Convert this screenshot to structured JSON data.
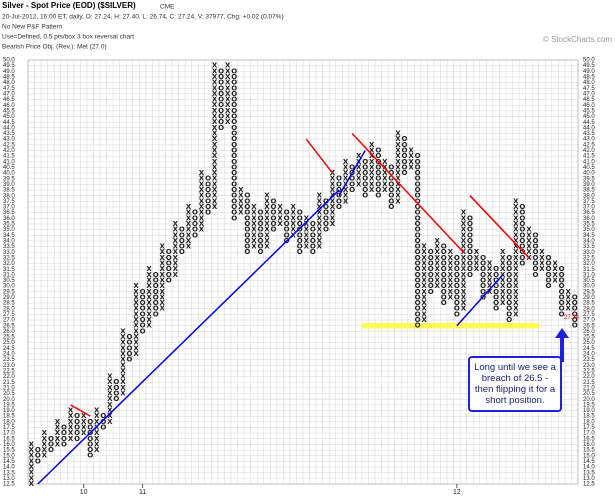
{
  "chart_data": {
    "type": "pnf",
    "title": "Silver - Spot Price (EOD) ($SILVER)",
    "exchange": "CME",
    "subtitle": "20-Jul-2012, 16:00 ET, daily, O: 27.24, H: 27.40, L: 26.74, C: 27.24, V: 37977, Chg: +0.02 (0.07%)",
    "pattern": "No New P&F Pattern",
    "settings": "Use=Defined, 0.5 pts/box 3 box reversal chart",
    "objective": "Bearish Price Obj. (Rev.): Met (27.0)",
    "copyright": "© StockCharts.com",
    "box_size": 0.5,
    "last_price": 27.24,
    "annotation": "Long until we see a breach of 26.5 - then flipping it for a short position.",
    "ylim": [
      12.5,
      50
    ],
    "yticks": [
      12.5,
      {
        "value": 13,
        "label": "13.0"
      },
      13.5,
      {
        "value": 14,
        "label": "14.0"
      },
      14.5,
      {
        "value": 15,
        "label": "15.0"
      },
      15.5,
      {
        "value": 16,
        "label": "16.0"
      },
      16.5,
      {
        "value": 17,
        "label": "17.0"
      },
      17.5,
      {
        "value": 18,
        "label": "18.0"
      },
      18.5,
      {
        "value": 19,
        "label": "19.0"
      },
      19.5,
      {
        "value": 20,
        "label": "20.0"
      },
      20.5,
      {
        "value": 21,
        "label": "21.0"
      },
      21.5,
      {
        "value": 22,
        "label": "22.0"
      },
      22.5,
      {
        "value": 23,
        "label": "23.0"
      },
      23.5,
      {
        "value": 24,
        "label": "24.0"
      },
      24.5,
      {
        "value": 25,
        "label": "25.0"
      },
      25.5,
      {
        "value": 26,
        "label": "26.0"
      },
      26.5,
      {
        "value": 27,
        "label": "27.0"
      },
      27.5,
      {
        "value": 28,
        "label": "28.0"
      },
      28.5,
      {
        "value": 29,
        "label": "29.0"
      },
      29.5,
      {
        "value": 30,
        "label": "30.0"
      },
      30.5,
      {
        "value": 31,
        "label": "31.0"
      },
      31.5,
      {
        "value": 32,
        "label": "32.0"
      },
      32.5,
      {
        "value": 33,
        "label": "33.0"
      },
      33.5,
      {
        "value": 34,
        "label": "34.0"
      },
      34.5,
      {
        "value": 35,
        "label": "35.0"
      },
      35.5,
      {
        "value": 36,
        "label": "36.0"
      },
      36.5,
      {
        "value": 37,
        "label": "37.0"
      },
      37.5,
      {
        "value": 38,
        "label": "38.0"
      },
      38.5,
      {
        "value": 39,
        "label": "39.0"
      },
      39.5,
      {
        "value": 40,
        "label": "40.0"
      },
      40.5,
      {
        "value": 41,
        "label": "41.0"
      },
      41.5,
      {
        "value": 42,
        "label": "42.0"
      },
      42.5,
      {
        "value": 43,
        "label": "43.0"
      },
      43.5,
      {
        "value": 44,
        "label": "44.0"
      },
      44.5,
      {
        "value": 45,
        "label": "45.0"
      },
      45.5,
      {
        "value": 46,
        "label": "46.0"
      },
      46.5,
      {
        "value": 47,
        "label": "47.0"
      },
      47.5,
      {
        "value": 48,
        "label": "48.0"
      },
      48.5,
      {
        "value": 49,
        "label": "49.0"
      },
      49.5,
      {
        "value": 50,
        "label": "50.0"
      }
    ],
    "grid": true,
    "xlabels": [
      {
        "label": "10",
        "column": 8
      },
      {
        "label": "11",
        "column": 17
      },
      {
        "label": "12",
        "column": 65
      }
    ],
    "columns": [
      {
        "type": "X",
        "low": 12.5,
        "high": 16
      },
      {
        "type": "O",
        "low": 14.5,
        "high": 15.5
      },
      {
        "type": "X",
        "low": 15,
        "high": 17
      },
      {
        "type": "O",
        "low": 15.5,
        "high": 16.5
      },
      {
        "type": "X",
        "low": 16,
        "high": 18
      },
      {
        "type": "O",
        "low": 16,
        "high": 17.5
      },
      {
        "type": "X",
        "low": 16.5,
        "high": 19
      },
      {
        "type": "O",
        "low": 16.5,
        "high": 18.5
      },
      {
        "type": "X",
        "low": 17,
        "high": 18.5
      },
      {
        "type": "O",
        "low": 15,
        "high": 18
      },
      {
        "type": "X",
        "low": 15.5,
        "high": 19
      },
      {
        "type": "O",
        "low": 17.5,
        "high": 18.5
      },
      {
        "type": "X",
        "low": 18,
        "high": 22
      },
      {
        "type": "O",
        "low": 20,
        "high": 21.5
      },
      {
        "type": "X",
        "low": 20.5,
        "high": 26
      },
      {
        "type": "O",
        "low": 23.5,
        "high": 25.5
      },
      {
        "type": "X",
        "low": 24,
        "high": 30
      },
      {
        "type": "O",
        "low": 26,
        "high": 29.5
      },
      {
        "type": "X",
        "low": 26.5,
        "high": 31.5
      },
      {
        "type": "O",
        "low": 27.5,
        "high": 31
      },
      {
        "type": "X",
        "low": 28,
        "high": 33.5
      },
      {
        "type": "O",
        "low": 30.5,
        "high": 33
      },
      {
        "type": "X",
        "low": 31,
        "high": 35.5
      },
      {
        "type": "O",
        "low": 33,
        "high": 35
      },
      {
        "type": "X",
        "low": 33.5,
        "high": 37
      },
      {
        "type": "O",
        "low": 34.5,
        "high": 36.5
      },
      {
        "type": "X",
        "low": 35,
        "high": 40
      },
      {
        "type": "O",
        "low": 36.5,
        "high": 39.5
      },
      {
        "type": "X",
        "low": 37,
        "high": 49.5
      },
      {
        "type": "O",
        "low": 44,
        "high": 49
      },
      {
        "type": "X",
        "low": 44.5,
        "high": 49.5
      },
      {
        "type": "O",
        "low": 36,
        "high": 49
      },
      {
        "type": "X",
        "low": 36.5,
        "high": 38.5
      },
      {
        "type": "O",
        "low": 33,
        "high": 38
      },
      {
        "type": "X",
        "low": 33.5,
        "high": 37
      },
      {
        "type": "O",
        "low": 33,
        "high": 36.5
      },
      {
        "type": "X",
        "low": 33.5,
        "high": 38
      },
      {
        "type": "O",
        "low": 35,
        "high": 37.5
      },
      {
        "type": "X",
        "low": 35.5,
        "high": 37
      },
      {
        "type": "O",
        "low": 34,
        "high": 36.5
      },
      {
        "type": "X",
        "low": 34.5,
        "high": 37
      },
      {
        "type": "O",
        "low": 33,
        "high": 36.5
      },
      {
        "type": "X",
        "low": 33.5,
        "high": 36
      },
      {
        "type": "O",
        "low": 33,
        "high": 35.5
      },
      {
        "type": "X",
        "low": 33.5,
        "high": 38
      },
      {
        "type": "O",
        "low": 35,
        "high": 37.5
      },
      {
        "type": "X",
        "low": 35.5,
        "high": 40
      },
      {
        "type": "O",
        "low": 37,
        "high": 39.5
      },
      {
        "type": "X",
        "low": 37.5,
        "high": 41
      },
      {
        "type": "O",
        "low": 38.5,
        "high": 40.5
      },
      {
        "type": "X",
        "low": 39,
        "high": 41.5
      },
      {
        "type": "O",
        "low": 38,
        "high": 41
      },
      {
        "type": "X",
        "low": 38.5,
        "high": 42.5
      },
      {
        "type": "O",
        "low": 38,
        "high": 42
      },
      {
        "type": "X",
        "low": 38.5,
        "high": 41
      },
      {
        "type": "O",
        "low": 37,
        "high": 40.5
      },
      {
        "type": "X",
        "low": 37.5,
        "high": 43.5
      },
      {
        "type": "O",
        "low": 40,
        "high": 43
      },
      {
        "type": "X",
        "low": 40.5,
        "high": 42
      },
      {
        "type": "O",
        "low": 26.5,
        "high": 41.5
      },
      {
        "type": "X",
        "low": 27,
        "high": 33.5
      },
      {
        "type": "O",
        "low": 29.5,
        "high": 33
      },
      {
        "type": "X",
        "low": 30,
        "high": 34
      },
      {
        "type": "O",
        "low": 28.5,
        "high": 33.5
      },
      {
        "type": "X",
        "low": 29,
        "high": 33
      },
      {
        "type": "O",
        "low": 27.5,
        "high": 32.5
      },
      {
        "type": "X",
        "low": 28,
        "high": 36.5
      },
      {
        "type": "O",
        "low": 31,
        "high": 36
      },
      {
        "type": "X",
        "low": 31.5,
        "high": 33
      },
      {
        "type": "O",
        "low": 29,
        "high": 32.5
      },
      {
        "type": "X",
        "low": 29.5,
        "high": 32
      },
      {
        "type": "O",
        "low": 28,
        "high": 31.5
      },
      {
        "type": "X",
        "low": 28.5,
        "high": 33
      },
      {
        "type": "O",
        "low": 27,
        "high": 32.5
      },
      {
        "type": "X",
        "low": 27.5,
        "high": 37.5
      },
      {
        "type": "O",
        "low": 32,
        "high": 37
      },
      {
        "type": "X",
        "low": 32.5,
        "high": 35
      },
      {
        "type": "O",
        "low": 31,
        "high": 34.5
      },
      {
        "type": "X",
        "low": 31.5,
        "high": 33
      },
      {
        "type": "O",
        "low": 30,
        "high": 32.5
      },
      {
        "type": "X",
        "low": 30.5,
        "high": 32
      },
      {
        "type": "O",
        "low": 27.5,
        "high": 31.5
      },
      {
        "type": "X",
        "low": 28,
        "high": 29.5
      },
      {
        "type": "O",
        "low": 26.5,
        "high": 29
      }
    ],
    "trendlines": [
      {
        "color": "#0000ff",
        "from": [
          1,
          12.5
        ],
        "to": [
          47,
          38.5
        ]
      },
      {
        "color": "#0000ff",
        "from": [
          47,
          38
        ],
        "to": [
          51,
          42
        ]
      },
      {
        "color": "#0000ff",
        "from": [
          65,
          26.5
        ],
        "to": [
          72,
          31
        ]
      },
      {
        "color": "#ff0000",
        "from": [
          6,
          19.5
        ],
        "to": [
          9,
          18.5
        ]
      },
      {
        "color": "#ff0000",
        "from": [
          42,
          43
        ],
        "to": [
          46,
          40
        ]
      },
      {
        "color": "#ff0000",
        "from": [
          49,
          43.5
        ],
        "to": [
          66,
          33
        ]
      },
      {
        "color": "#ff0000",
        "from": [
          67,
          38
        ],
        "to": [
          76,
          32.5
        ]
      }
    ],
    "support_band": {
      "color": "#ffff33",
      "price": 26.5,
      "from": 51,
      "to": 78
    }
  }
}
